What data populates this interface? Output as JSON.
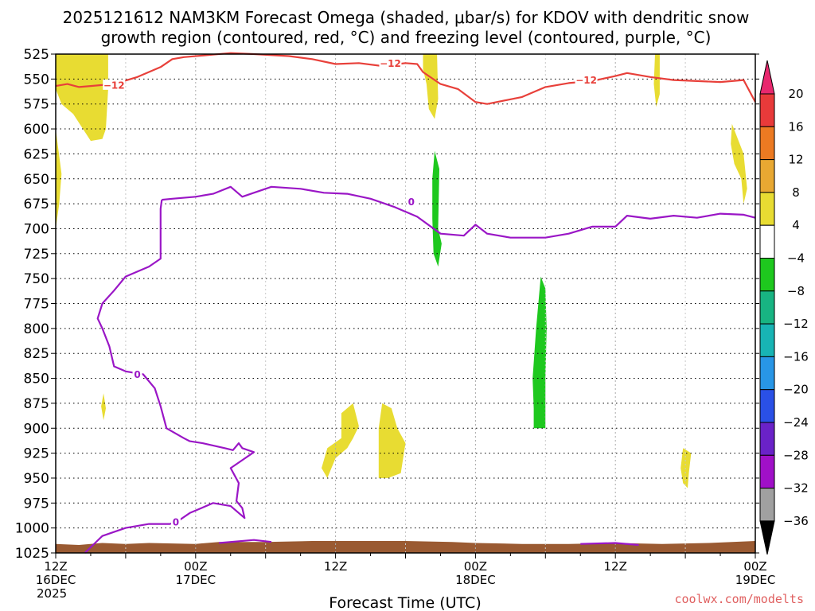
{
  "chart_data": {
    "type": "time-height",
    "title_line1": "2025121612 NAM3KM Forecast Omega (shaded, μbar/s) for KDOV with dendritic snow",
    "title_line2": "growth region (contoured, red, °C) and freezing level (contoured, purple, °C)",
    "xlabel": "Forecast Time (UTC)",
    "credit": "coolwx.com/modelts",
    "x_range_hours": [
      0,
      60
    ],
    "y_range_mb": [
      525,
      1025
    ],
    "y_ticks": [
      525,
      550,
      575,
      600,
      625,
      650,
      675,
      700,
      725,
      750,
      775,
      800,
      825,
      850,
      875,
      900,
      925,
      950,
      975,
      1000,
      1025
    ],
    "x_ticks": [
      {
        "hour": 0,
        "lines": [
          "12Z",
          "16DEC",
          "2025"
        ]
      },
      {
        "hour": 12,
        "lines": [
          "00Z",
          "17DEC"
        ]
      },
      {
        "hour": 24,
        "lines": [
          "12Z"
        ]
      },
      {
        "hour": 36,
        "lines": [
          "00Z",
          "18DEC"
        ]
      },
      {
        "hour": 48,
        "lines": [
          "12Z"
        ]
      },
      {
        "hour": 60,
        "lines": [
          "00Z",
          "19DEC"
        ]
      }
    ],
    "grid": true,
    "colorbar": {
      "ticks": [
        "20",
        "16",
        "12",
        "8",
        "4",
        "−4",
        "−8",
        "−12",
        "−16",
        "−20",
        "−24",
        "−28",
        "−32",
        "−36"
      ],
      "colors": [
        "#e8286e",
        "#e83a3a",
        "#ec7a22",
        "#e8a832",
        "#e8dc32",
        "#ffffff",
        "#1ec81e",
        "#18b482",
        "#18b4b4",
        "#2896e6",
        "#2a50e6",
        "#6a22c8",
        "#a010c8",
        "#a0a0a0",
        "#000000"
      ]
    },
    "contours": {
      "dgz_minus12": {
        "label": "−12",
        "color": "#e8403a",
        "points": [
          [
            0,
            557
          ],
          [
            1,
            555
          ],
          [
            2,
            558
          ],
          [
            3,
            557
          ],
          [
            5,
            555
          ],
          [
            7,
            548
          ],
          [
            9,
            538
          ],
          [
            10,
            530
          ],
          [
            11,
            528
          ],
          [
            13,
            526
          ],
          [
            15,
            524
          ],
          [
            17,
            525
          ],
          [
            20,
            527
          ],
          [
            22,
            530
          ],
          [
            24,
            535
          ],
          [
            26,
            534
          ],
          [
            28,
            537
          ],
          [
            30,
            534
          ],
          [
            31,
            535
          ],
          [
            31.5,
            543
          ],
          [
            33,
            555
          ],
          [
            34.5,
            560
          ],
          [
            36,
            573
          ],
          [
            37,
            575
          ],
          [
            40,
            568
          ],
          [
            42,
            558
          ],
          [
            44,
            554
          ],
          [
            46,
            552
          ],
          [
            48,
            547
          ],
          [
            49,
            544
          ],
          [
            51,
            548
          ],
          [
            53,
            551
          ],
          [
            55,
            552
          ],
          [
            57,
            553
          ],
          [
            59,
            551
          ],
          [
            60,
            573
          ]
        ]
      },
      "freezing_0": {
        "label": "0",
        "color": "#9a16c6",
        "points": [
          [
            9.1,
            671
          ],
          [
            10,
            670
          ],
          [
            12,
            668
          ],
          [
            13.5,
            665
          ],
          [
            15,
            658
          ],
          [
            16,
            668
          ],
          [
            17,
            664
          ],
          [
            18.5,
            658
          ],
          [
            21,
            660
          ],
          [
            23,
            664
          ],
          [
            25,
            665
          ],
          [
            27,
            670
          ],
          [
            29,
            678
          ],
          [
            31,
            688
          ],
          [
            33,
            705
          ],
          [
            35,
            707
          ],
          [
            36,
            696
          ],
          [
            37,
            705
          ],
          [
            39,
            709
          ],
          [
            42,
            709
          ],
          [
            44,
            705
          ],
          [
            46,
            698
          ],
          [
            48,
            698
          ],
          [
            49,
            687
          ],
          [
            51,
            690
          ],
          [
            53,
            687
          ],
          [
            55,
            689
          ],
          [
            57,
            685
          ],
          [
            59,
            686
          ],
          [
            60,
            689
          ]
        ]
      },
      "freezing_0_low": {
        "label": "0",
        "color": "#9a16c6",
        "points": [
          [
            9.1,
            671
          ],
          [
            9,
            680
          ],
          [
            9,
            730
          ],
          [
            8,
            738
          ],
          [
            6,
            748
          ],
          [
            5,
            762
          ],
          [
            4,
            775
          ],
          [
            3.6,
            790
          ],
          [
            4,
            800
          ],
          [
            4.6,
            818
          ],
          [
            5,
            838
          ],
          [
            6,
            843
          ],
          [
            7.5,
            846
          ],
          [
            8.5,
            860
          ],
          [
            9,
            878
          ],
          [
            9.5,
            900
          ],
          [
            11,
            910
          ],
          [
            11.5,
            913
          ],
          [
            12.6,
            915
          ],
          [
            14.5,
            920
          ],
          [
            15.2,
            922
          ],
          [
            15.7,
            915
          ],
          [
            16,
            920
          ],
          [
            17,
            924
          ],
          [
            16,
            932
          ],
          [
            15,
            940
          ],
          [
            15.7,
            955
          ],
          [
            15.5,
            973
          ],
          [
            16,
            980
          ],
          [
            16.2,
            990
          ],
          [
            15.7,
            985
          ],
          [
            15,
            978
          ],
          [
            13.5,
            975
          ],
          [
            11.5,
            985
          ],
          [
            10.5,
            993
          ],
          [
            9.8,
            996
          ],
          [
            8,
            996
          ],
          [
            6,
            1000
          ],
          [
            4,
            1008
          ],
          [
            2.5,
            1025
          ]
        ]
      },
      "freezing_0_surface": {
        "color": "#9a16c6",
        "segments": [
          [
            [
              14,
              1015
            ],
            [
              17,
              1012
            ],
            [
              18.5,
              1014
            ]
          ],
          [
            [
              45,
              1016
            ],
            [
              48,
              1015
            ],
            [
              50,
              1017
            ]
          ]
        ]
      }
    },
    "shading": {
      "positive_4_8": {
        "color": "#e8dc32",
        "regions": [
          [
            [
              0,
              525
            ],
            [
              4.5,
              525
            ],
            [
              4.5,
              560
            ],
            [
              4.3,
              600
            ],
            [
              4,
              610
            ],
            [
              3,
              612
            ],
            [
              1.5,
              585
            ],
            [
              0.5,
              575
            ],
            [
              0,
              560
            ]
          ],
          [
            [
              0,
              600
            ],
            [
              0.5,
              645
            ],
            [
              0.3,
              675
            ],
            [
              0,
              700
            ]
          ],
          [
            [
              31.5,
              525
            ],
            [
              32.7,
              525
            ],
            [
              32.8,
              570
            ],
            [
              32.5,
              590
            ],
            [
              32,
              580
            ],
            [
              31.8,
              555
            ],
            [
              31.5,
              540
            ]
          ],
          [
            [
              51.4,
              525
            ],
            [
              51.8,
              525
            ],
            [
              51.8,
              565
            ],
            [
              51.5,
              578
            ],
            [
              51.3,
              555
            ]
          ],
          [
            [
              58,
              595
            ],
            [
              59,
              625
            ],
            [
              59.3,
              660
            ],
            [
              59,
              675
            ],
            [
              58.8,
              650
            ],
            [
              58.2,
              635
            ],
            [
              57.9,
              615
            ]
          ],
          [
            [
              4.1,
              865
            ],
            [
              4.3,
              880
            ],
            [
              4.1,
              892
            ],
            [
              3.9,
              878
            ]
          ],
          [
            [
              24.5,
              885
            ],
            [
              25.5,
              875
            ],
            [
              26,
              898
            ],
            [
              25.5,
              910
            ],
            [
              25,
              920
            ],
            [
              24,
              930
            ],
            [
              23.3,
              950
            ],
            [
              22.8,
              940
            ],
            [
              23.3,
              920
            ],
            [
              24.5,
              910
            ]
          ],
          [
            [
              28,
              875
            ],
            [
              28.8,
              880
            ],
            [
              29.3,
              900
            ],
            [
              30,
              915
            ],
            [
              29.6,
              945
            ],
            [
              28.5,
              950
            ],
            [
              27.7,
              950
            ],
            [
              27.7,
              930
            ],
            [
              27.7,
              900
            ]
          ],
          [
            [
              53.8,
              920
            ],
            [
              54.5,
              925
            ],
            [
              54.3,
              945
            ],
            [
              54.2,
              960
            ],
            [
              53.8,
              955
            ],
            [
              53.6,
              940
            ]
          ]
        ]
      },
      "negative_4_8": {
        "color": "#1ec81e",
        "regions": [
          [
            [
              32.5,
              622
            ],
            [
              32.9,
              640
            ],
            [
              32.8,
              700
            ],
            [
              33.1,
              715
            ],
            [
              32.8,
              738
            ],
            [
              32.4,
              725
            ],
            [
              32.3,
              690
            ],
            [
              32.3,
              650
            ]
          ],
          [
            [
              41.6,
              748
            ],
            [
              42,
              760
            ],
            [
              42.1,
              800
            ],
            [
              42,
              850
            ],
            [
              42,
              900
            ],
            [
              41,
              900
            ],
            [
              41,
              880
            ],
            [
              40.9,
              850
            ],
            [
              41.2,
              800
            ]
          ]
        ]
      }
    },
    "terrain": {
      "color": "#9a5a32",
      "top_mb": [
        [
          0,
          1016
        ],
        [
          2,
          1017
        ],
        [
          4,
          1015
        ],
        [
          6,
          1016
        ],
        [
          8,
          1015
        ],
        [
          12,
          1016
        ],
        [
          14,
          1014
        ],
        [
          18,
          1014
        ],
        [
          22,
          1013
        ],
        [
          26,
          1013
        ],
        [
          30,
          1013
        ],
        [
          34,
          1014
        ],
        [
          36,
          1015
        ],
        [
          40,
          1016
        ],
        [
          44,
          1016
        ],
        [
          48,
          1015
        ],
        [
          52,
          1016
        ],
        [
          56,
          1015
        ],
        [
          58,
          1014
        ],
        [
          60,
          1013
        ]
      ]
    }
  }
}
